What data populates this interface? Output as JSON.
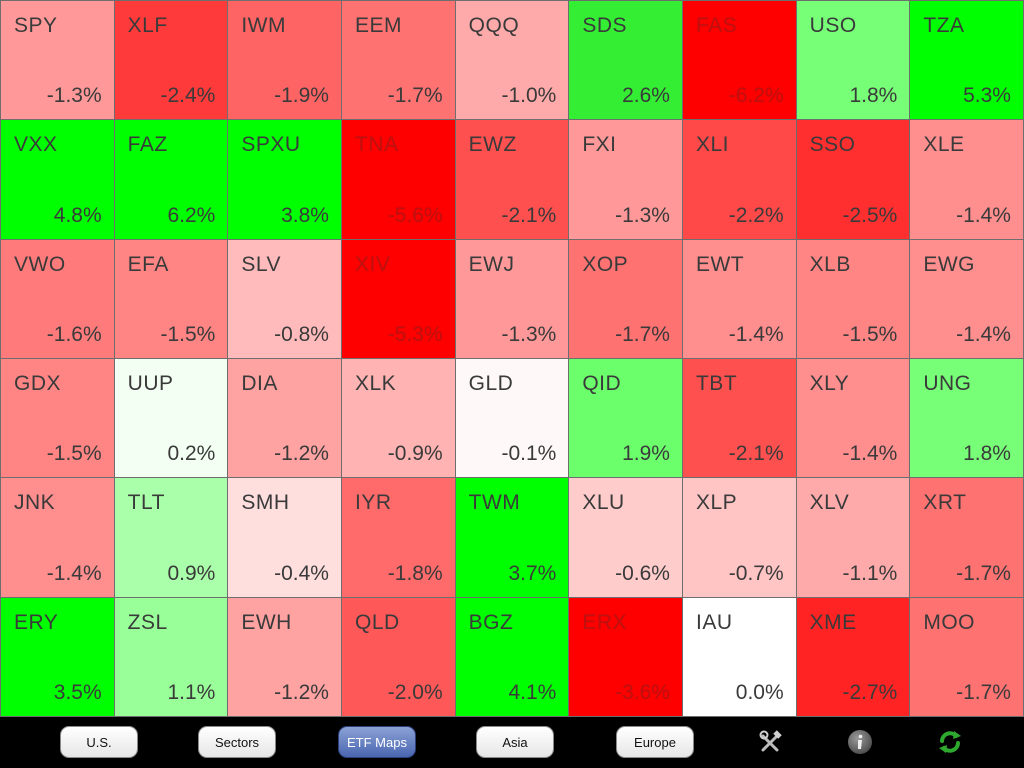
{
  "tiles": [
    {
      "symbol": "SPY",
      "change": "-1.3%",
      "color": "#ff9999",
      "deep": false
    },
    {
      "symbol": "XLF",
      "change": "-2.4%",
      "color": "#ff3a3a",
      "deep": false
    },
    {
      "symbol": "IWM",
      "change": "-1.9%",
      "color": "#ff6464",
      "deep": false
    },
    {
      "symbol": "EEM",
      "change": "-1.7%",
      "color": "#ff7272",
      "deep": false
    },
    {
      "symbol": "QQQ",
      "change": "-1.0%",
      "color": "#ffaaaa",
      "deep": false
    },
    {
      "symbol": "SDS",
      "change": "2.6%",
      "color": "#33ee33",
      "deep": false
    },
    {
      "symbol": "FAS",
      "change": "-6.2%",
      "color": "#ff0000",
      "deep": true
    },
    {
      "symbol": "USO",
      "change": "1.8%",
      "color": "#77ff77",
      "deep": false
    },
    {
      "symbol": "TZA",
      "change": "5.3%",
      "color": "#00ff00",
      "deep": false
    },
    {
      "symbol": "VXX",
      "change": "4.8%",
      "color": "#00ff00",
      "deep": false
    },
    {
      "symbol": "FAZ",
      "change": "6.2%",
      "color": "#00ff00",
      "deep": false
    },
    {
      "symbol": "SPXU",
      "change": "3.8%",
      "color": "#00ff00",
      "deep": false
    },
    {
      "symbol": "TNA",
      "change": "-5.6%",
      "color": "#ff0000",
      "deep": true
    },
    {
      "symbol": "EWZ",
      "change": "-2.1%",
      "color": "#ff5050",
      "deep": false
    },
    {
      "symbol": "FXI",
      "change": "-1.3%",
      "color": "#ff9999",
      "deep": false
    },
    {
      "symbol": "XLI",
      "change": "-2.2%",
      "color": "#ff4848",
      "deep": false
    },
    {
      "symbol": "SSO",
      "change": "-2.5%",
      "color": "#ff2f2f",
      "deep": false
    },
    {
      "symbol": "XLE",
      "change": "-1.4%",
      "color": "#ff8e8e",
      "deep": false
    },
    {
      "symbol": "VWO",
      "change": "-1.6%",
      "color": "#ff7b7b",
      "deep": false
    },
    {
      "symbol": "EFA",
      "change": "-1.5%",
      "color": "#ff8484",
      "deep": false
    },
    {
      "symbol": "SLV",
      "change": "-0.8%",
      "color": "#ffbbbb",
      "deep": false
    },
    {
      "symbol": "XIV",
      "change": "-5.3%",
      "color": "#ff0000",
      "deep": true
    },
    {
      "symbol": "EWJ",
      "change": "-1.3%",
      "color": "#ff9999",
      "deep": false
    },
    {
      "symbol": "XOP",
      "change": "-1.7%",
      "color": "#ff7272",
      "deep": false
    },
    {
      "symbol": "EWT",
      "change": "-1.4%",
      "color": "#ff8e8e",
      "deep": false
    },
    {
      "symbol": "XLB",
      "change": "-1.5%",
      "color": "#ff8484",
      "deep": false
    },
    {
      "symbol": "EWG",
      "change": "-1.4%",
      "color": "#ff8e8e",
      "deep": false
    },
    {
      "symbol": "GDX",
      "change": "-1.5%",
      "color": "#ff8484",
      "deep": false
    },
    {
      "symbol": "UUP",
      "change": "0.2%",
      "color": "#f3fff3",
      "deep": false
    },
    {
      "symbol": "DIA",
      "change": "-1.2%",
      "color": "#ffa2a2",
      "deep": false
    },
    {
      "symbol": "XLK",
      "change": "-0.9%",
      "color": "#ffb3b3",
      "deep": false
    },
    {
      "symbol": "GLD",
      "change": "-0.1%",
      "color": "#fff8f8",
      "deep": false
    },
    {
      "symbol": "QID",
      "change": "1.9%",
      "color": "#6cff6c",
      "deep": false
    },
    {
      "symbol": "TBT",
      "change": "-2.1%",
      "color": "#ff5050",
      "deep": false
    },
    {
      "symbol": "XLY",
      "change": "-1.4%",
      "color": "#ff8e8e",
      "deep": false
    },
    {
      "symbol": "UNG",
      "change": "1.8%",
      "color": "#77ff77",
      "deep": false
    },
    {
      "symbol": "JNK",
      "change": "-1.4%",
      "color": "#ff8e8e",
      "deep": false
    },
    {
      "symbol": "TLT",
      "change": "0.9%",
      "color": "#aaffaa",
      "deep": false
    },
    {
      "symbol": "SMH",
      "change": "-0.4%",
      "color": "#ffdede",
      "deep": false
    },
    {
      "symbol": "IYR",
      "change": "-1.8%",
      "color": "#ff6b6b",
      "deep": false
    },
    {
      "symbol": "TWM",
      "change": "3.7%",
      "color": "#00ff00",
      "deep": false
    },
    {
      "symbol": "XLU",
      "change": "-0.6%",
      "color": "#ffcccc",
      "deep": false
    },
    {
      "symbol": "XLP",
      "change": "-0.7%",
      "color": "#ffc4c4",
      "deep": false
    },
    {
      "symbol": "XLV",
      "change": "-1.1%",
      "color": "#ffaaaa",
      "deep": false
    },
    {
      "symbol": "XRT",
      "change": "-1.7%",
      "color": "#ff7272",
      "deep": false
    },
    {
      "symbol": "ERY",
      "change": "3.5%",
      "color": "#00ff00",
      "deep": false
    },
    {
      "symbol": "ZSL",
      "change": "1.1%",
      "color": "#99ff99",
      "deep": false
    },
    {
      "symbol": "EWH",
      "change": "-1.2%",
      "color": "#ffa2a2",
      "deep": false
    },
    {
      "symbol": "QLD",
      "change": "-2.0%",
      "color": "#ff5858",
      "deep": false
    },
    {
      "symbol": "BGZ",
      "change": "4.1%",
      "color": "#00ff00",
      "deep": false
    },
    {
      "symbol": "ERX",
      "change": "-3.6%",
      "color": "#ff0000",
      "deep": true
    },
    {
      "symbol": "IAU",
      "change": "0.0%",
      "color": "#ffffff",
      "deep": false
    },
    {
      "symbol": "XME",
      "change": "-2.7%",
      "color": "#ff2323",
      "deep": false
    },
    {
      "symbol": "MOO",
      "change": "-1.7%",
      "color": "#ff7272",
      "deep": false
    }
  ],
  "toolbar": {
    "buttons": [
      {
        "label": "U.S.",
        "active": false
      },
      {
        "label": "Sectors",
        "active": false
      },
      {
        "label": "ETF Maps",
        "active": true
      },
      {
        "label": "Asia",
        "active": false
      },
      {
        "label": "Europe",
        "active": false
      }
    ],
    "icons": {
      "tools": "tools-icon",
      "info": "info-icon",
      "refresh": "refresh-icon"
    }
  }
}
